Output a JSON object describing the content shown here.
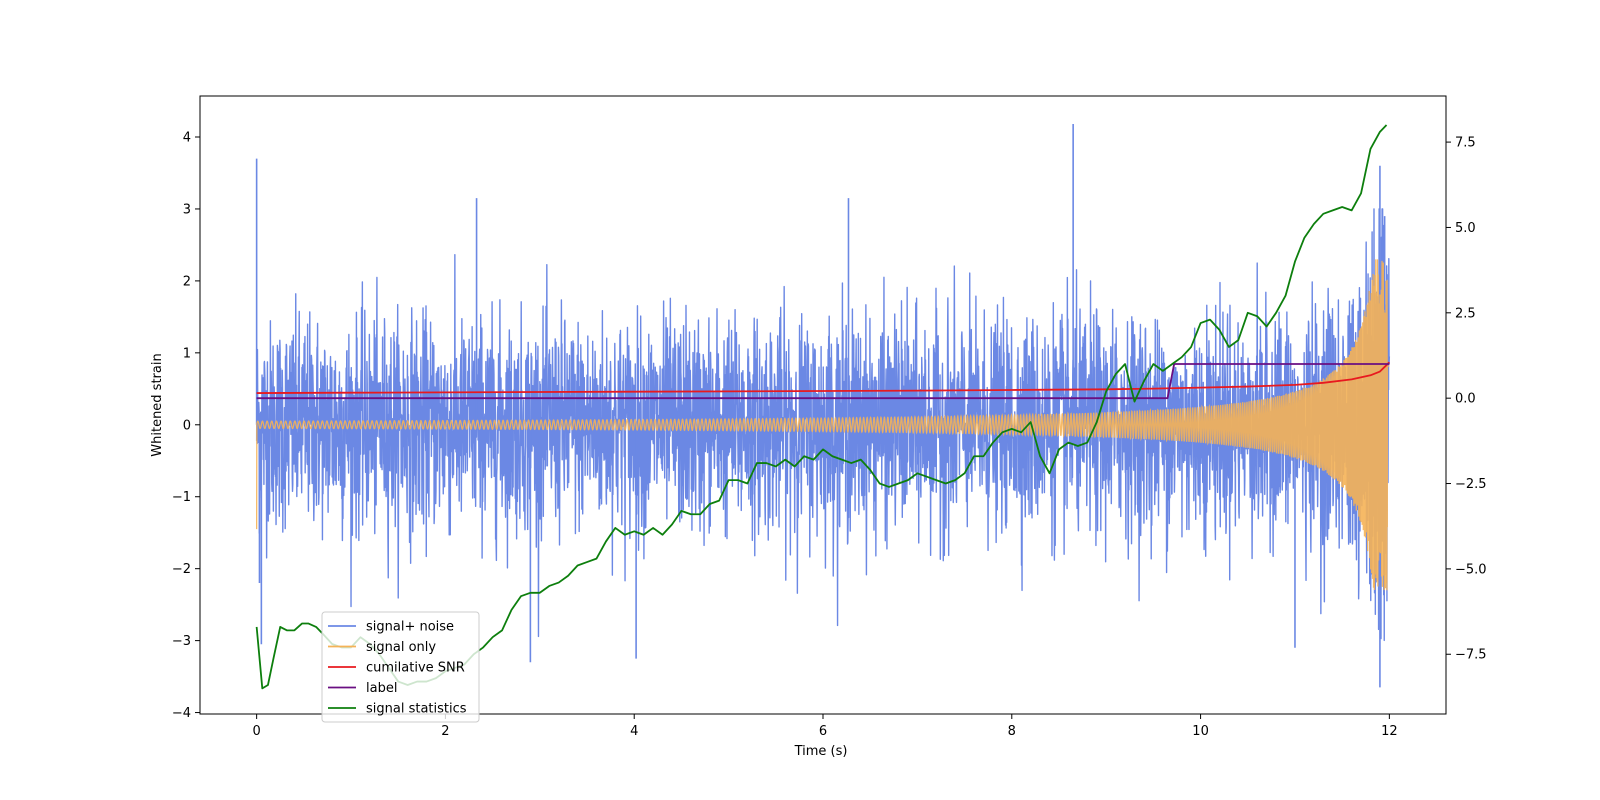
{
  "chart_data": {
    "type": "line",
    "title": "",
    "xlabel": "Time (s)",
    "ylabel": "Whitened strain",
    "y2label": "",
    "xlim": [
      -0.6,
      12.6
    ],
    "ylim": [
      -4.02,
      4.57
    ],
    "y2lim": [
      -9.25,
      8.85
    ],
    "xticks": [
      0,
      2,
      4,
      6,
      8,
      10,
      12
    ],
    "yticks": [
      -4,
      -3,
      -2,
      -1,
      0,
      1,
      2,
      3,
      4
    ],
    "y2ticks": [
      -7.5,
      -5.0,
      -2.5,
      0.0,
      2.5,
      5.0,
      7.5
    ],
    "grid": false,
    "legend_position": "lower-left",
    "series": [
      {
        "name": "signal+ noise",
        "color": "#6b88e4",
        "axis": "left",
        "description": "dense noisy whitened strain, roughly ±1.4 typical amplitude with spikes up to ±3, plus chirp near 12 s",
        "x_range": [
          0,
          12
        ],
        "noise_sd": 0.72,
        "spikes": [
          {
            "x": 0.0,
            "y": 3.7
          },
          {
            "x": 0.05,
            "y": -3.05
          },
          {
            "x": 0.03,
            "y": -2.2
          },
          {
            "x": 2.33,
            "y": 3.15
          },
          {
            "x": 2.9,
            "y": -3.3
          },
          {
            "x": 4.02,
            "y": -3.25
          },
          {
            "x": 6.27,
            "y": 3.15
          },
          {
            "x": 8.65,
            "y": 4.18
          },
          {
            "x": 11.0,
            "y": -3.1
          },
          {
            "x": 11.9,
            "y": 3.6
          },
          {
            "x": 11.9,
            "y": -3.65
          },
          {
            "x": 11.95,
            "y": 2.9
          }
        ]
      },
      {
        "name": "signal only",
        "color": "#f5b357",
        "axis": "left",
        "description": "chirp waveform, amplitude ~0.05 growing to ~2.3 at 12 s, frequency increasing",
        "x_range": [
          0,
          12
        ],
        "amplitude_start": 0.05,
        "amplitude_end": 2.3,
        "start_value": -1.45
      },
      {
        "name": "cumilative SNR",
        "color": "#e8191f",
        "axis": "right",
        "x": [
          0.0,
          1,
          2,
          3,
          4,
          5,
          6,
          7,
          8,
          9,
          9.5,
          10,
          10.5,
          11,
          11.3,
          11.6,
          11.8,
          11.9,
          12.0
        ],
        "y": [
          0.15,
          0.16,
          0.17,
          0.18,
          0.19,
          0.2,
          0.21,
          0.22,
          0.24,
          0.26,
          0.28,
          0.31,
          0.34,
          0.39,
          0.45,
          0.55,
          0.67,
          0.78,
          1.05
        ]
      },
      {
        "name": "label",
        "color": "#6a0f82",
        "axis": "right",
        "x": [
          0.0,
          9.65,
          9.72,
          12.0
        ],
        "y": [
          0.0,
          0.0,
          1.0,
          1.0
        ]
      },
      {
        "name": "signal statistics",
        "color": "#0d7f0d",
        "axis": "right",
        "x": [
          0.0,
          0.06,
          0.12,
          0.18,
          0.25,
          0.32,
          0.4,
          0.48,
          0.55,
          0.63,
          0.7,
          0.8,
          0.9,
          1.0,
          1.1,
          1.2,
          1.3,
          1.4,
          1.5,
          1.6,
          1.7,
          1.8,
          1.9,
          2.0,
          2.1,
          2.2,
          2.3,
          2.4,
          2.5,
          2.6,
          2.7,
          2.8,
          2.9,
          3.0,
          3.1,
          3.2,
          3.3,
          3.4,
          3.5,
          3.6,
          3.7,
          3.8,
          3.9,
          4.0,
          4.1,
          4.2,
          4.3,
          4.4,
          4.5,
          4.6,
          4.7,
          4.8,
          4.9,
          5.0,
          5.1,
          5.2,
          5.3,
          5.4,
          5.5,
          5.6,
          5.7,
          5.8,
          5.9,
          6.0,
          6.1,
          6.2,
          6.3,
          6.4,
          6.5,
          6.6,
          6.7,
          6.8,
          6.9,
          7.0,
          7.1,
          7.2,
          7.3,
          7.4,
          7.5,
          7.6,
          7.7,
          7.8,
          7.9,
          8.0,
          8.1,
          8.2,
          8.3,
          8.4,
          8.5,
          8.6,
          8.7,
          8.8,
          8.9,
          9.0,
          9.1,
          9.2,
          9.3,
          9.4,
          9.5,
          9.6,
          9.7,
          9.8,
          9.9,
          10.0,
          10.1,
          10.2,
          10.3,
          10.4,
          10.5,
          10.6,
          10.7,
          10.8,
          10.9,
          11.0,
          11.1,
          11.2,
          11.3,
          11.4,
          11.5,
          11.6,
          11.7,
          11.8,
          11.9,
          11.97
        ],
        "y": [
          -6.7,
          -8.5,
          -8.4,
          -7.6,
          -6.7,
          -6.8,
          -6.8,
          -6.6,
          -6.6,
          -6.7,
          -6.9,
          -7.2,
          -7.3,
          -7.3,
          -7.0,
          -7.2,
          -7.5,
          -7.9,
          -8.3,
          -8.4,
          -8.3,
          -8.3,
          -8.2,
          -8.0,
          -7.9,
          -7.8,
          -7.5,
          -7.3,
          -7.0,
          -6.8,
          -6.2,
          -5.8,
          -5.7,
          -5.7,
          -5.5,
          -5.4,
          -5.2,
          -4.9,
          -4.8,
          -4.7,
          -4.2,
          -3.8,
          -4.0,
          -3.9,
          -4.0,
          -3.8,
          -4.0,
          -3.7,
          -3.3,
          -3.4,
          -3.4,
          -3.1,
          -3.0,
          -2.4,
          -2.4,
          -2.5,
          -1.9,
          -1.9,
          -2.0,
          -1.8,
          -2.0,
          -1.7,
          -1.8,
          -1.5,
          -1.7,
          -1.8,
          -1.9,
          -1.8,
          -2.1,
          -2.5,
          -2.6,
          -2.5,
          -2.4,
          -2.2,
          -2.3,
          -2.4,
          -2.5,
          -2.4,
          -2.2,
          -1.7,
          -1.7,
          -1.3,
          -1.0,
          -0.9,
          -1.0,
          -0.7,
          -1.7,
          -2.2,
          -1.5,
          -1.3,
          -1.4,
          -1.3,
          -0.7,
          0.2,
          0.7,
          1.0,
          -0.1,
          0.5,
          1.0,
          0.8,
          1.0,
          1.2,
          1.5,
          2.2,
          2.3,
          2.0,
          1.5,
          1.7,
          2.5,
          2.4,
          2.1,
          2.5,
          3.0,
          4.0,
          4.7,
          5.1,
          5.4,
          5.5,
          5.6,
          5.5,
          6.0,
          7.3,
          7.8,
          8.0
        ]
      }
    ]
  }
}
